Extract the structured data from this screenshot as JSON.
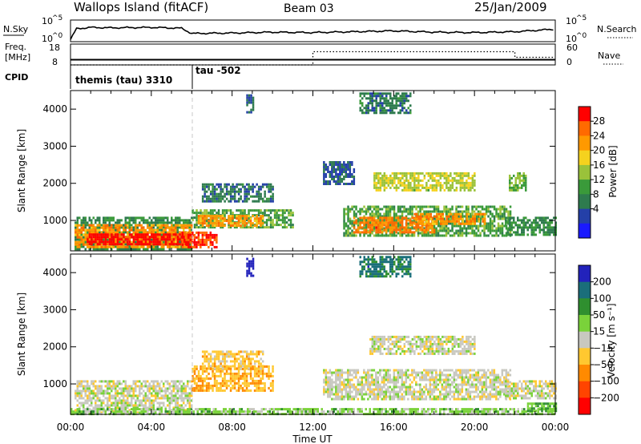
{
  "header": {
    "station": "Wallops Island (fitACF)",
    "beam": "Beam 03",
    "date": "25/Jan/2009"
  },
  "strip_labels": {
    "nsky": "N.Sky",
    "nsearch": "N.Search",
    "freq_line1": "Freq.",
    "freq_line2": "[MHz]",
    "nave": "Nave",
    "cpid": "CPID",
    "tick_1e5_base": "10",
    "tick_1e5_exp": "^5",
    "tick_1e0_base": "10",
    "tick_1e0_exp": "^0",
    "freq_18": "18",
    "freq_8": "8",
    "nave_60": "60",
    "nave_0": "0",
    "cpid_1": "themis (tau) 3310",
    "cpid_2": "tau -502"
  },
  "power_panel": {
    "ylabel": "Slant Range [km]",
    "yticks": [
      "1000",
      "2000",
      "3000",
      "4000"
    ],
    "colorbar_label": "Power [dB]",
    "colorbar_ticks": [
      "4",
      "8",
      "12",
      "16",
      "20",
      "24",
      "28"
    ],
    "colors": [
      "#1a1aff",
      "#2440a8",
      "#2e7b4e",
      "#3a9a3a",
      "#9ac23a",
      "#f5d21e",
      "#ff9900",
      "#ff6a00",
      "#ff0000"
    ]
  },
  "velocity_panel": {
    "ylabel": "Slant Range [km]",
    "yticks": [
      "1000",
      "2000",
      "3000",
      "4000"
    ],
    "colorbar_label": "Velocity [m s⁻¹]",
    "colorbar_ticks": [
      "200",
      "100",
      "50",
      "15",
      "−15",
      "−50",
      "−100",
      "−200"
    ],
    "colors": [
      "#2222bb",
      "#1a6e7a",
      "#2f8f2f",
      "#7ad23a",
      "#c8c8c0",
      "#ffc830",
      "#ff8a00",
      "#ff4400",
      "#ff0000"
    ]
  },
  "time_axis": {
    "ticks": [
      "00:00",
      "04:00",
      "08:00",
      "12:00",
      "16:00",
      "20:00",
      "00:00"
    ],
    "label": "Time UT"
  },
  "chart_data": [
    {
      "type": "line",
      "name": "N.Sky",
      "x_hours": [
        0,
        0.3,
        1,
        2,
        4,
        5.5,
        6,
        8,
        10,
        12,
        14,
        16,
        18,
        20,
        22,
        24
      ],
      "values_log10": [
        0.5,
        3.0,
        3.3,
        3.2,
        3.3,
        3.1,
        1.9,
        2.0,
        2.2,
        2.1,
        2.3,
        2.5,
        2.2,
        2.1,
        2.3,
        2.9
      ],
      "ylim_log10": [
        0,
        5
      ]
    },
    {
      "type": "line",
      "name": "Freq.",
      "x_hours": [
        0,
        6,
        6,
        24
      ],
      "values": [
        10.5,
        10.5,
        10.5,
        10.5
      ],
      "ylim": [
        8,
        18
      ]
    },
    {
      "type": "line",
      "name": "Nave",
      "x_hours": [
        0,
        6,
        6,
        12,
        12,
        22,
        22,
        24
      ],
      "values": [
        0,
        0,
        0,
        0,
        38,
        38,
        22,
        22
      ],
      "ylim": [
        0,
        60
      ]
    },
    {
      "type": "heatmap",
      "name": "Power",
      "x_range_hours": [
        0,
        24
      ],
      "y_range_km": [
        180,
        4500
      ],
      "z_range_db": [
        0,
        30
      ],
      "regions": [
        {
          "t": [
            0.2,
            6.0
          ],
          "r": [
            250,
            1100
          ],
          "db": 10
        },
        {
          "t": [
            0.2,
            6.0
          ],
          "r": [
            300,
            900
          ],
          "db": 22
        },
        {
          "t": [
            0.8,
            6.0
          ],
          "r": [
            350,
            650
          ],
          "db": 29
        },
        {
          "t": [
            5.5,
            7.2
          ],
          "r": [
            300,
            700
          ],
          "db": 27
        },
        {
          "t": [
            6.0,
            11.0
          ],
          "r": [
            800,
            1300
          ],
          "db": 12
        },
        {
          "t": [
            6.3,
            9.5
          ],
          "r": [
            850,
            1150
          ],
          "db": 22
        },
        {
          "t": [
            6.5,
            10.0
          ],
          "r": [
            1500,
            2000
          ],
          "db": 8
        },
        {
          "t": [
            13.5,
            21.8
          ],
          "r": [
            600,
            1400
          ],
          "db": 12
        },
        {
          "t": [
            14.0,
            18.0
          ],
          "r": [
            700,
            1100
          ],
          "db": 24
        },
        {
          "t": [
            17.0,
            20.5
          ],
          "r": [
            900,
            1200
          ],
          "db": 22
        },
        {
          "t": [
            15.0,
            20.0
          ],
          "r": [
            1800,
            2300
          ],
          "db": 16
        },
        {
          "t": [
            12.5,
            14.0
          ],
          "r": [
            2000,
            2600
          ],
          "db": 6
        },
        {
          "t": [
            21.5,
            24.0
          ],
          "r": [
            600,
            1100
          ],
          "db": 10
        },
        {
          "t": [
            21.7,
            22.5
          ],
          "r": [
            1800,
            2300
          ],
          "db": 14
        },
        {
          "t": [
            8.7,
            9.0
          ],
          "r": [
            3900,
            4400
          ],
          "db": 6
        },
        {
          "t": [
            14.3,
            16.8
          ],
          "r": [
            3900,
            4450
          ],
          "db": 8
        }
      ]
    },
    {
      "type": "heatmap",
      "name": "Velocity",
      "x_range_hours": [
        0,
        24
      ],
      "y_range_km": [
        180,
        4500
      ],
      "z_range_ms": [
        -200,
        200
      ],
      "regions": [
        {
          "t": [
            0.2,
            6.0
          ],
          "r": [
            250,
            1100
          ],
          "vel": 0
        },
        {
          "t": [
            6.0,
            10.0
          ],
          "r": [
            800,
            1500
          ],
          "vel": -60
        },
        {
          "t": [
            6.5,
            9.5
          ],
          "r": [
            1400,
            1900
          ],
          "vel": -40
        },
        {
          "t": [
            12.5,
            21.8
          ],
          "r": [
            600,
            1400
          ],
          "vel": 0
        },
        {
          "t": [
            14.8,
            20.0
          ],
          "r": [
            1800,
            2300
          ],
          "vel": 0
        },
        {
          "t": [
            21.5,
            24.0
          ],
          "r": [
            600,
            1100
          ],
          "vel": 0
        },
        {
          "t": [
            0,
            24
          ],
          "r": [
            180,
            350
          ],
          "vel": 40
        },
        {
          "t": [
            22.5,
            24.0
          ],
          "r": [
            300,
            500
          ],
          "vel": 60
        },
        {
          "t": [
            8.7,
            9.0
          ],
          "r": [
            3900,
            4400
          ],
          "vel": 200
        },
        {
          "t": [
            14.3,
            16.8
          ],
          "r": [
            3900,
            4450
          ],
          "vel": 120
        }
      ]
    }
  ]
}
